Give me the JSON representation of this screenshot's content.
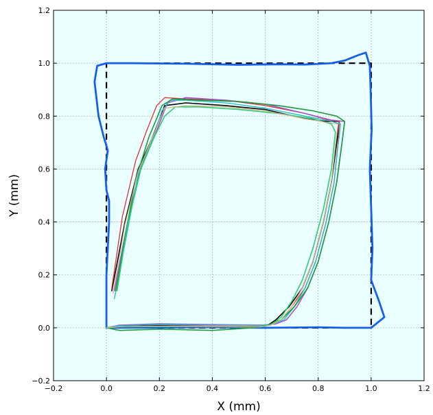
{
  "chart_data": {
    "type": "line",
    "title": "",
    "xlabel": "X (mm)",
    "ylabel": "Y (mm)",
    "xlim": [
      -0.2,
      1.2
    ],
    "ylim": [
      -0.2,
      1.2
    ],
    "xticks": [
      -0.2,
      0.0,
      0.2,
      0.4,
      0.6,
      0.8,
      1.0,
      1.2
    ],
    "yticks": [
      -0.2,
      0.0,
      0.2,
      0.4,
      0.6,
      0.8,
      1.0,
      1.2
    ],
    "xtick_labels": [
      "−0.2",
      "0.0",
      "0.2",
      "0.4",
      "0.6",
      "0.8",
      "1.0",
      "1.2"
    ],
    "ytick_labels": [
      "−0.2",
      "0.0",
      "0.2",
      "0.4",
      "0.6",
      "0.8",
      "1.0",
      "1.2"
    ],
    "grid": true,
    "background_color": "#eaffff",
    "series": [
      {
        "color": "#000000",
        "style": "dashed",
        "width": 2.2,
        "x": [
          0.0,
          1.0,
          1.0,
          0.0,
          0.0
        ],
        "y": [
          0.0,
          0.0,
          1.0,
          1.0,
          0.0
        ]
      },
      {
        "color": "#1560e8",
        "style": "solid",
        "width": 2.8,
        "x": [
          0.0,
          0.0,
          0.01,
          0.01,
          0.0,
          -0.005,
          0.005,
          -0.01,
          -0.03,
          -0.045,
          -0.035,
          0.0,
          0.1,
          0.3,
          0.5,
          0.65,
          0.75,
          0.85,
          0.9,
          0.95,
          0.98,
          0.995,
          0.998,
          1.002,
          0.995,
          1.0,
          1.005,
          1.0,
          1.03,
          1.05,
          1.0,
          0.9,
          0.8,
          0.6,
          0.4,
          0.2,
          0.0
        ],
        "y": [
          0.0,
          0.2,
          0.4,
          0.48,
          0.52,
          0.6,
          0.67,
          0.72,
          0.8,
          0.93,
          0.99,
          1.0,
          1.0,
          0.998,
          0.994,
          0.996,
          0.995,
          1.0,
          1.01,
          1.03,
          1.04,
          0.99,
          0.9,
          0.75,
          0.6,
          0.45,
          0.3,
          0.18,
          0.1,
          0.04,
          0.0,
          0.0,
          0.002,
          0.0,
          0.002,
          0.001,
          0.0
        ]
      },
      {
        "color": "#000000",
        "style": "solid",
        "width": 1.6,
        "x": [
          0.02,
          0.07,
          0.12,
          0.17,
          0.22,
          0.3,
          0.45,
          0.6,
          0.75,
          0.83,
          0.88,
          0.87,
          0.85,
          0.82,
          0.78,
          0.74,
          0.69,
          0.64,
          0.61,
          0.58,
          0.4,
          0.2,
          0.05,
          0.0
        ],
        "y": [
          0.14,
          0.4,
          0.6,
          0.71,
          0.84,
          0.85,
          0.84,
          0.825,
          0.79,
          0.78,
          0.78,
          0.7,
          0.55,
          0.4,
          0.25,
          0.15,
          0.08,
          0.03,
          0.01,
          0.005,
          0.005,
          0.008,
          0.005,
          0.0
        ]
      },
      {
        "color": "#e03030",
        "style": "solid",
        "width": 1.3,
        "x": [
          0.02,
          0.06,
          0.11,
          0.15,
          0.19,
          0.22,
          0.3,
          0.45,
          0.6,
          0.75,
          0.84,
          0.88,
          0.875,
          0.86,
          0.83,
          0.79,
          0.75,
          0.7,
          0.66,
          0.62,
          0.58,
          0.4,
          0.2,
          0.05,
          0.0
        ],
        "y": [
          0.15,
          0.42,
          0.63,
          0.74,
          0.84,
          0.87,
          0.865,
          0.86,
          0.84,
          0.81,
          0.785,
          0.78,
          0.7,
          0.55,
          0.4,
          0.25,
          0.15,
          0.08,
          0.03,
          0.01,
          0.005,
          0.006,
          0.006,
          0.004,
          0.0
        ]
      },
      {
        "color": "#9b59d0",
        "style": "solid",
        "width": 1.6,
        "x": [
          0.03,
          0.08,
          0.13,
          0.18,
          0.23,
          0.3,
          0.45,
          0.6,
          0.75,
          0.85,
          0.9,
          0.89,
          0.87,
          0.84,
          0.8,
          0.76,
          0.72,
          0.68,
          0.64,
          0.6,
          0.4,
          0.2,
          0.05,
          0.0
        ],
        "y": [
          0.14,
          0.4,
          0.61,
          0.72,
          0.85,
          0.87,
          0.86,
          0.845,
          0.81,
          0.785,
          0.78,
          0.7,
          0.55,
          0.4,
          0.25,
          0.15,
          0.08,
          0.03,
          0.015,
          0.01,
          0.012,
          0.015,
          0.01,
          0.0
        ]
      },
      {
        "color": "#20b8c8",
        "style": "solid",
        "width": 1.3,
        "x": [
          0.03,
          0.08,
          0.12,
          0.17,
          0.21,
          0.24,
          0.3,
          0.45,
          0.6,
          0.75,
          0.85,
          0.885,
          0.875,
          0.86,
          0.83,
          0.79,
          0.75,
          0.71,
          0.67,
          0.63,
          0.59,
          0.4,
          0.2,
          0.05,
          0.0
        ],
        "y": [
          0.11,
          0.37,
          0.58,
          0.7,
          0.82,
          0.86,
          0.86,
          0.85,
          0.83,
          0.8,
          0.78,
          0.77,
          0.69,
          0.55,
          0.4,
          0.25,
          0.15,
          0.08,
          0.03,
          0.015,
          0.01,
          0.01,
          0.012,
          0.008,
          0.0
        ]
      },
      {
        "color": "#1e9a3c",
        "style": "solid",
        "width": 1.6,
        "x": [
          0.035,
          0.07,
          0.11,
          0.16,
          0.21,
          0.25,
          0.35,
          0.5,
          0.65,
          0.78,
          0.87,
          0.9,
          0.89,
          0.87,
          0.84,
          0.8,
          0.76,
          0.71,
          0.66,
          0.61,
          0.55,
          0.4,
          0.2,
          0.05,
          0.0
        ],
        "y": [
          0.14,
          0.34,
          0.56,
          0.72,
          0.84,
          0.865,
          0.86,
          0.855,
          0.84,
          0.82,
          0.8,
          0.78,
          0.7,
          0.55,
          0.4,
          0.25,
          0.15,
          0.08,
          0.03,
          0.01,
          0.0,
          -0.01,
          -0.005,
          -0.01,
          0.0
        ]
      },
      {
        "color": "#2ecc71",
        "style": "solid",
        "width": 1.6,
        "x": [
          0.04,
          0.08,
          0.13,
          0.18,
          0.22,
          0.26,
          0.35,
          0.5,
          0.65,
          0.78,
          0.85,
          0.865,
          0.85,
          0.82,
          0.78,
          0.74,
          0.7,
          0.66,
          0.62,
          0.58,
          0.4,
          0.2,
          0.05,
          0.0
        ],
        "y": [
          0.14,
          0.39,
          0.6,
          0.72,
          0.8,
          0.835,
          0.835,
          0.825,
          0.81,
          0.79,
          0.77,
          0.74,
          0.6,
          0.45,
          0.3,
          0.18,
          0.1,
          0.04,
          0.01,
          0.003,
          0.004,
          0.005,
          0.004,
          0.0
        ]
      },
      {
        "color": "#d4b48c",
        "style": "solid",
        "width": 1.3,
        "x": [
          0.025,
          0.07,
          0.12,
          0.17,
          0.22,
          0.3,
          0.45,
          0.6,
          0.75,
          0.84,
          0.875,
          0.865,
          0.85,
          0.82,
          0.78,
          0.74,
          0.7,
          0.66,
          0.62,
          0.58,
          0.4,
          0.2,
          0.05,
          0.0
        ],
        "y": [
          0.13,
          0.39,
          0.59,
          0.71,
          0.83,
          0.84,
          0.835,
          0.82,
          0.79,
          0.775,
          0.77,
          0.69,
          0.55,
          0.4,
          0.25,
          0.15,
          0.08,
          0.03,
          0.01,
          0.004,
          0.004,
          0.006,
          0.004,
          0.0
        ]
      }
    ]
  }
}
